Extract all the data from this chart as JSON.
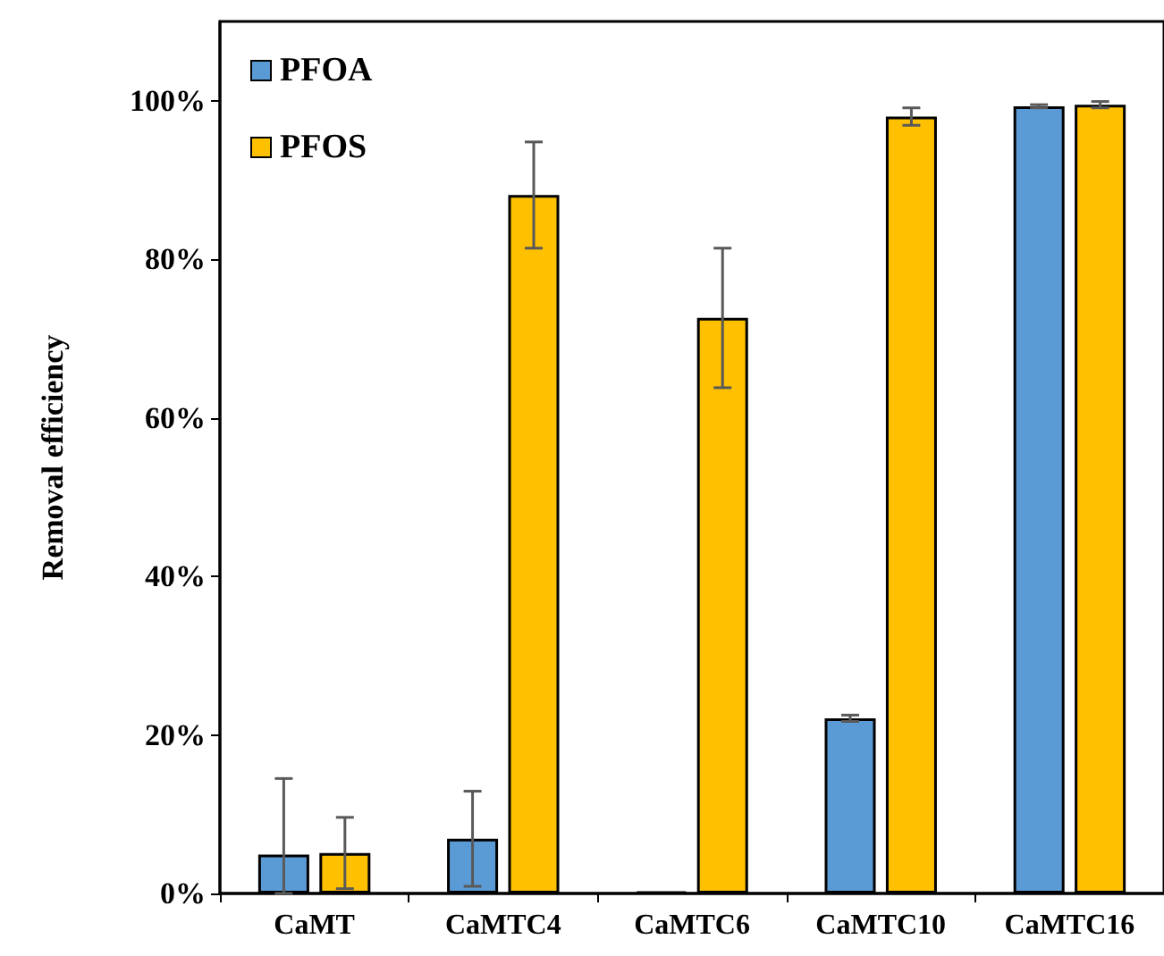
{
  "chart_data": {
    "type": "bar",
    "ylabel": "Removal efficiency",
    "categories": [
      "CaMT",
      "CaMTC4",
      "CaMTC6",
      "CaMTC10",
      "CaMTC16"
    ],
    "series": [
      {
        "name": "PFOA",
        "color": "#5b9bd5",
        "values": [
          4.9,
          6.9,
          0.2,
          22.1,
          99.3
        ],
        "errors": [
          [
            0,
            14.5
          ],
          6,
          null,
          0.4,
          0.2
        ]
      },
      {
        "name": "PFOS",
        "color": "#ffc000",
        "values": [
          5.1,
          88.1,
          72.6,
          98.0,
          99.5
        ],
        "errors": [
          4.5,
          6.7,
          8.8,
          1.1,
          0.4
        ]
      }
    ],
    "ylim": [
      0,
      110
    ],
    "yticks": [
      {
        "value": 0,
        "label": "0%"
      },
      {
        "value": 20,
        "label": "20%"
      },
      {
        "value": 40,
        "label": "40%"
      },
      {
        "value": 60,
        "label": "60%"
      },
      {
        "value": 80,
        "label": "80%"
      },
      {
        "value": 100,
        "label": "100%"
      }
    ],
    "grid": false,
    "legend": "top left"
  }
}
